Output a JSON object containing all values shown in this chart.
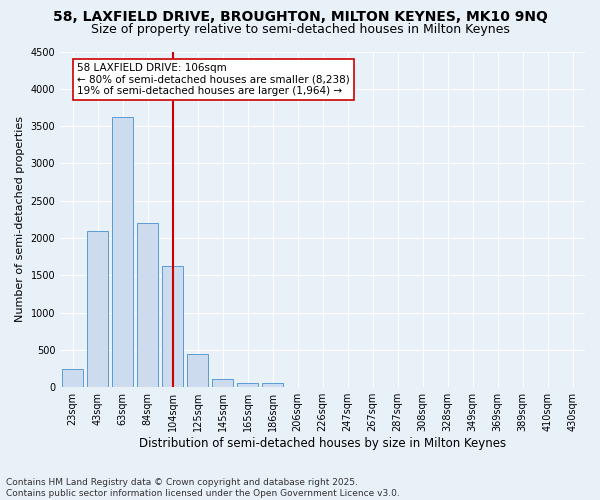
{
  "title_line1": "58, LAXFIELD DRIVE, BROUGHTON, MILTON KEYNES, MK10 9NQ",
  "title_line2": "Size of property relative to semi-detached houses in Milton Keynes",
  "xlabel": "Distribution of semi-detached houses by size in Milton Keynes",
  "ylabel": "Number of semi-detached properties",
  "categories": [
    "23sqm",
    "43sqm",
    "63sqm",
    "84sqm",
    "104sqm",
    "125sqm",
    "145sqm",
    "165sqm",
    "186sqm",
    "206sqm",
    "226sqm",
    "247sqm",
    "267sqm",
    "287sqm",
    "308sqm",
    "328sqm",
    "349sqm",
    "369sqm",
    "389sqm",
    "410sqm",
    "430sqm"
  ],
  "values": [
    250,
    2100,
    3620,
    2200,
    1620,
    450,
    105,
    60,
    50,
    5,
    0,
    0,
    0,
    0,
    0,
    0,
    0,
    0,
    0,
    0,
    0
  ],
  "bar_color": "#ccdcee",
  "bar_edge_color": "#5b9bd5",
  "vline_x": 4,
  "vline_color": "#cc0000",
  "annotation_title": "58 LAXFIELD DRIVE: 106sqm",
  "annotation_line2": "← 80% of semi-detached houses are smaller (8,238)",
  "annotation_line3": "19% of semi-detached houses are larger (1,964) →",
  "annotation_box_color": "#cc0000",
  "ylim": [
    0,
    4500
  ],
  "yticks": [
    0,
    500,
    1000,
    1500,
    2000,
    2500,
    3000,
    3500,
    4000,
    4500
  ],
  "background_color": "#e8f0f8",
  "plot_bg_color": "#e8f0f8",
  "footnote_line1": "Contains HM Land Registry data © Crown copyright and database right 2025.",
  "footnote_line2": "Contains public sector information licensed under the Open Government Licence v3.0.",
  "grid_color": "#ffffff",
  "title1_fontsize": 10,
  "title2_fontsize": 9,
  "xlabel_fontsize": 8.5,
  "ylabel_fontsize": 8,
  "tick_fontsize": 7,
  "footnote_fontsize": 6.5,
  "annotation_fontsize": 7.5
}
